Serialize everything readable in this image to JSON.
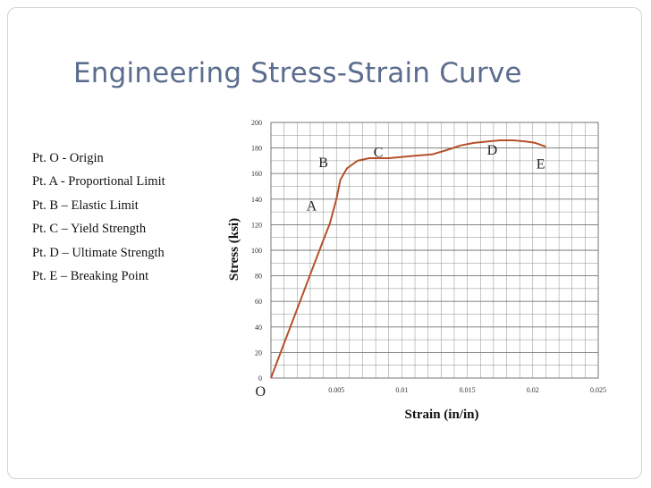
{
  "slide": {
    "title": "Engineering Stress-Strain Curve",
    "legend_items": [
      "Pt. O - Origin",
      "Pt. A - Proportional Limit",
      "Pt. B – Elastic Limit",
      "Pt. C – Yield Strength",
      "Pt. D – Ultimate Strength",
      "Pt. E – Breaking Point"
    ]
  },
  "chart_data": {
    "type": "line",
    "title": "",
    "xlabel": "Strain (in/in)",
    "ylabel": "Stress (ksi)",
    "xlim": [
      0,
      0.025
    ],
    "ylim": [
      0,
      200
    ],
    "x_ticks": [
      0.005,
      0.01,
      0.015,
      0.02,
      0.025
    ],
    "x_tick_labels": [
      "0.005",
      "0.01",
      "0.015",
      "0.02",
      "0.025"
    ],
    "y_ticks": [
      0,
      20,
      40,
      60,
      80,
      100,
      120,
      140,
      160,
      180,
      200
    ],
    "y_tick_labels": [
      "0",
      "20",
      "40",
      "60",
      "80",
      "100",
      "120",
      "140",
      "160",
      "180",
      "200"
    ],
    "grid": true,
    "line_color": "#b5502a",
    "grid_color": "#8f8f8f",
    "series": [
      {
        "x": [
          0,
          0.001,
          0.002,
          0.003,
          0.004,
          0.0045,
          0.005,
          0.0053,
          0.0058,
          0.0066,
          0.0075,
          0.009,
          0.011,
          0.0123,
          0.0133,
          0.0145,
          0.0155,
          0.0165,
          0.0175,
          0.0185,
          0.0195,
          0.0202,
          0.021
        ],
        "y": [
          0,
          27,
          54,
          81,
          108,
          121,
          140,
          155,
          164,
          170,
          172,
          172,
          174,
          175,
          178,
          182,
          184,
          185,
          186,
          186,
          185,
          184,
          181
        ]
      }
    ],
    "annotations": [
      {
        "text": "O",
        "x": -0.0008,
        "y": -14
      },
      {
        "text": "A",
        "x": 0.0031,
        "y": 131
      },
      {
        "text": "B",
        "x": 0.004,
        "y": 165
      },
      {
        "text": "C",
        "x": 0.0082,
        "y": 173
      },
      {
        "text": "D",
        "x": 0.0169,
        "y": 175
      },
      {
        "text": "E",
        "x": 0.0206,
        "y": 164
      }
    ]
  }
}
